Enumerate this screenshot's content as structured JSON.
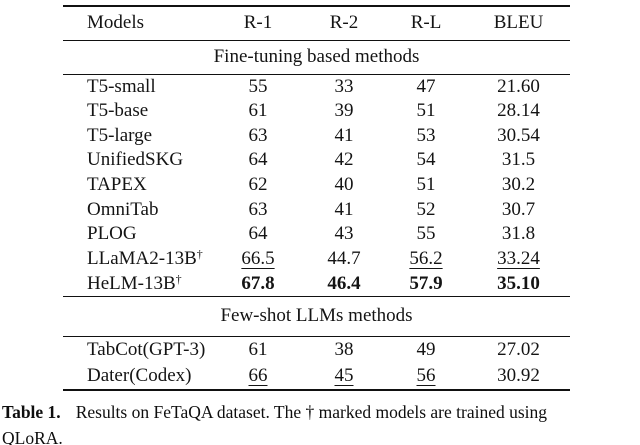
{
  "table": {
    "headers": [
      "Models",
      "R-1",
      "R-2",
      "R-L",
      "BLEU"
    ],
    "dagger_symbol": "†",
    "sections": [
      {
        "title": "Fine-tuning based methods",
        "rows": [
          {
            "model": "T5-small",
            "dagger": false,
            "values": [
              "55",
              "33",
              "47",
              "21.60"
            ],
            "underline": [
              false,
              false,
              false,
              false
            ],
            "bold": false
          },
          {
            "model": "T5-base",
            "dagger": false,
            "values": [
              "61",
              "39",
              "51",
              "28.14"
            ],
            "underline": [
              false,
              false,
              false,
              false
            ],
            "bold": false
          },
          {
            "model": "T5-large",
            "dagger": false,
            "values": [
              "63",
              "41",
              "53",
              "30.54"
            ],
            "underline": [
              false,
              false,
              false,
              false
            ],
            "bold": false
          },
          {
            "model": "UnifiedSKG",
            "dagger": false,
            "values": [
              "64",
              "42",
              "54",
              "31.5"
            ],
            "underline": [
              false,
              false,
              false,
              false
            ],
            "bold": false
          },
          {
            "model": "TAPEX",
            "dagger": false,
            "values": [
              "62",
              "40",
              "51",
              "30.2"
            ],
            "underline": [
              false,
              false,
              false,
              false
            ],
            "bold": false
          },
          {
            "model": "OmniTab",
            "dagger": false,
            "values": [
              "63",
              "41",
              "52",
              "30.7"
            ],
            "underline": [
              false,
              false,
              false,
              false
            ],
            "bold": false
          },
          {
            "model": "PLOG",
            "dagger": false,
            "values": [
              "64",
              "43",
              "55",
              "31.8"
            ],
            "underline": [
              false,
              false,
              false,
              false
            ],
            "bold": false
          },
          {
            "model": "LLaMA2-13B",
            "dagger": true,
            "values": [
              "66.5",
              "44.7",
              "56.2",
              "33.24"
            ],
            "underline": [
              true,
              false,
              true,
              true
            ],
            "bold": false
          },
          {
            "model": "HeLM-13B",
            "dagger": true,
            "values": [
              "67.8",
              "46.4",
              "57.9",
              "35.10"
            ],
            "underline": [
              false,
              false,
              false,
              false
            ],
            "bold": true
          }
        ]
      },
      {
        "title": "Few-shot LLMs methods",
        "rows": [
          {
            "model": "TabCot(GPT-3)",
            "dagger": false,
            "values": [
              "61",
              "38",
              "49",
              "27.02"
            ],
            "underline": [
              false,
              false,
              false,
              false
            ],
            "bold": false
          },
          {
            "model": "Dater(Codex)",
            "dagger": false,
            "values": [
              "66",
              "45",
              "56",
              "30.92"
            ],
            "underline": [
              true,
              true,
              true,
              false
            ],
            "bold": false
          }
        ]
      }
    ]
  },
  "caption": {
    "label": "Table 1.",
    "line1": "Results on FeTaQA dataset. The † marked models are trained using",
    "line2": "QLoRA."
  }
}
